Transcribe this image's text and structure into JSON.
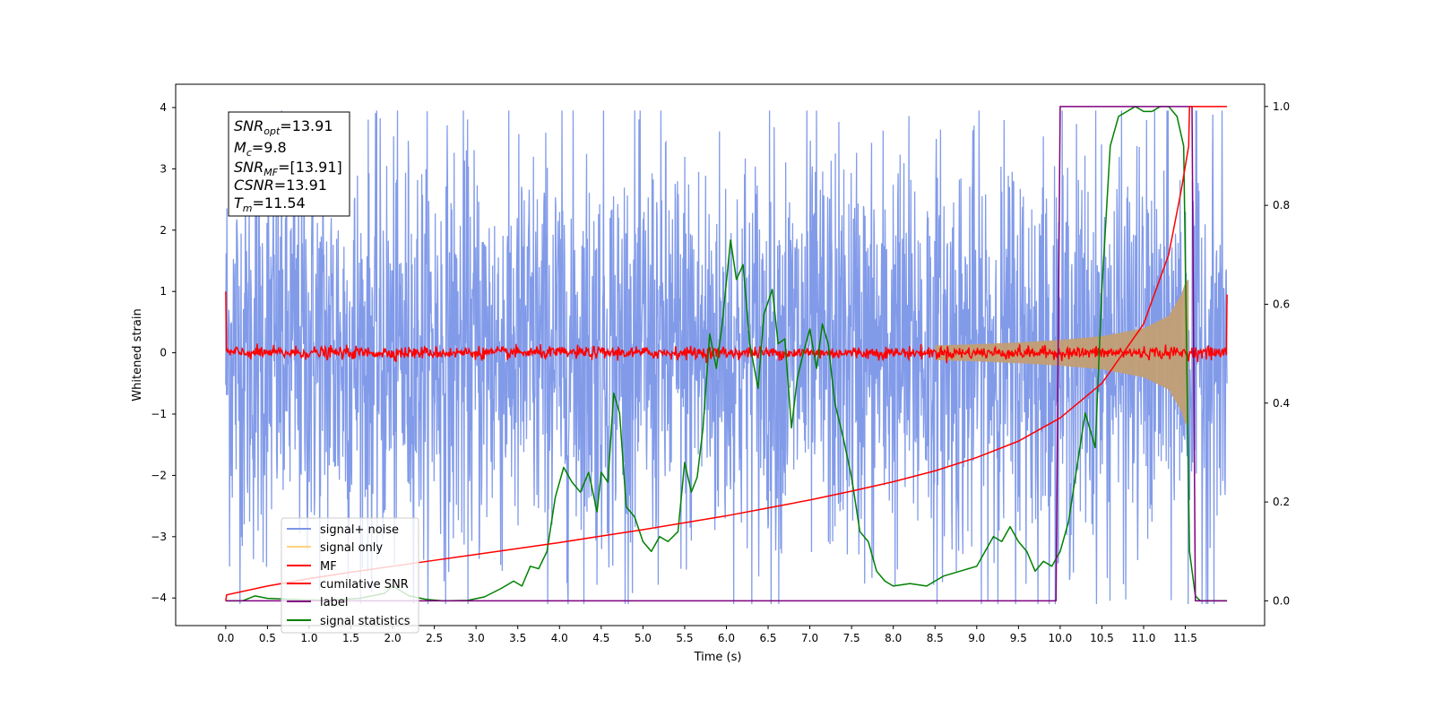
{
  "chart_data": {
    "type": "line",
    "xlabel": "Time (s)",
    "ylabel": "Whitened strain",
    "xlim": [
      -0.6,
      12.45
    ],
    "ylim_left": [
      -4.45,
      4.38
    ],
    "ylim_right": [
      -0.05,
      1.045
    ],
    "x_ticks": [
      "0.0",
      "0.5",
      "1.0",
      "1.5",
      "2.0",
      "2.5",
      "3.0",
      "3.5",
      "4.0",
      "4.5",
      "5.0",
      "5.5",
      "6.0",
      "6.5",
      "7.0",
      "7.5",
      "8.0",
      "8.5",
      "9.0",
      "9.5",
      "10.0",
      "10.5",
      "11.0",
      "11.5"
    ],
    "y_ticks_left": [
      "4",
      "3",
      "2",
      "1",
      "0",
      "−1",
      "−2",
      "−3",
      "−4"
    ],
    "y_ticks_right": [
      "1.0",
      "0.8",
      "0.6",
      "0.4",
      "0.2",
      "0.0"
    ],
    "legend": {
      "placement": "lower-left",
      "entries": [
        "signal+ noise",
        "signal only",
        "MF",
        "cumilative SNR",
        "label",
        "signal statistics"
      ]
    },
    "info_box": {
      "snr_opt": {
        "sym": "SNR",
        "sub": "opt",
        "val": "=13.91"
      },
      "mc": {
        "sym": "M",
        "sub": "c",
        "val": "=9.8"
      },
      "snr_mf": {
        "sym": "SNR",
        "sub": "MF",
        "val": "=[13.91]"
      },
      "csnr": {
        "sym": "CSNR",
        "sub": "",
        "val": "=13.91"
      },
      "tm": {
        "sym": "T",
        "sub": "m",
        "val": "=11.54"
      }
    },
    "colors": {
      "signal_noise": "#7b96e8",
      "signal_only": "#c29e74",
      "mf": "#ff0000",
      "cumulative_snr": "#ff0000",
      "label": "#800080",
      "signal_statistics": "#008000"
    },
    "series": [
      {
        "name": "signal+ noise",
        "axis": "left",
        "kind": "noise-band",
        "x_range": [
          0.0,
          12.0
        ],
        "typical_range": [
          -2.2,
          2.2
        ],
        "extreme_range": [
          -4.1,
          3.95
        ]
      },
      {
        "name": "signal only",
        "axis": "left",
        "kind": "chirp-envelope",
        "x": [
          8.5,
          9.0,
          9.5,
          10.0,
          10.5,
          11.0,
          11.3,
          11.45,
          11.5,
          11.54
        ],
        "amplitude": [
          0.12,
          0.14,
          0.17,
          0.21,
          0.27,
          0.4,
          0.6,
          0.95,
          1.15,
          1.2
        ]
      },
      {
        "name": "MF",
        "axis": "left",
        "kind": "noise-band",
        "x_range": [
          0.0,
          12.0
        ],
        "typical_range": [
          -0.12,
          0.12
        ],
        "start_value": 1.0,
        "end_value": 0.95
      },
      {
        "name": "cumilative SNR",
        "axis": "right",
        "x": [
          0.0,
          0.01,
          0.5,
          1.0,
          1.5,
          2.0,
          2.5,
          3.0,
          3.5,
          4.0,
          4.5,
          5.0,
          5.5,
          6.0,
          6.5,
          7.0,
          7.5,
          8.0,
          8.5,
          9.0,
          9.5,
          10.0,
          10.5,
          11.0,
          11.3,
          11.45,
          11.54,
          11.55,
          12.0
        ],
        "values": [
          0.0,
          0.012,
          0.03,
          0.045,
          0.058,
          0.07,
          0.082,
          0.094,
          0.106,
          0.118,
          0.131,
          0.144,
          0.158,
          0.172,
          0.188,
          0.204,
          0.222,
          0.241,
          0.263,
          0.29,
          0.323,
          0.37,
          0.44,
          0.56,
          0.7,
          0.83,
          0.92,
          1.0,
          1.0
        ]
      },
      {
        "name": "label",
        "axis": "right",
        "x": [
          0.0,
          9.95,
          10.0,
          11.58,
          11.62,
          12.0
        ],
        "values": [
          0.0,
          0.0,
          1.0,
          1.0,
          0.0,
          0.0
        ]
      },
      {
        "name": "signal statistics",
        "axis": "right",
        "x": [
          0.0,
          0.2,
          0.35,
          0.5,
          0.8,
          1.2,
          1.6,
          1.9,
          2.0,
          2.1,
          2.2,
          2.4,
          2.6,
          2.9,
          3.1,
          3.3,
          3.45,
          3.55,
          3.65,
          3.75,
          3.85,
          3.95,
          4.05,
          4.15,
          4.25,
          4.35,
          4.45,
          4.5,
          4.58,
          4.65,
          4.72,
          4.8,
          4.9,
          5.0,
          5.1,
          5.2,
          5.3,
          5.42,
          5.5,
          5.58,
          5.65,
          5.72,
          5.8,
          5.88,
          5.95,
          6.05,
          6.12,
          6.2,
          6.28,
          6.38,
          6.45,
          6.55,
          6.62,
          6.7,
          6.78,
          6.85,
          6.92,
          7.0,
          7.08,
          7.15,
          7.22,
          7.3,
          7.4,
          7.5,
          7.6,
          7.7,
          7.8,
          7.9,
          8.0,
          8.2,
          8.4,
          8.6,
          8.8,
          9.0,
          9.1,
          9.2,
          9.3,
          9.4,
          9.5,
          9.6,
          9.7,
          9.8,
          9.9,
          10.0,
          10.1,
          10.2,
          10.3,
          10.42,
          10.5,
          10.6,
          10.7,
          10.8,
          10.9,
          11.0,
          11.1,
          11.2,
          11.3,
          11.4,
          11.48,
          11.55,
          11.62,
          11.68,
          11.75,
          11.9,
          12.0
        ],
        "values": [
          0.0,
          0.0,
          0.01,
          0.005,
          0.003,
          0.001,
          0.005,
          0.015,
          0.03,
          0.02,
          0.01,
          0.003,
          0.0,
          0.001,
          0.008,
          0.025,
          0.04,
          0.03,
          0.07,
          0.065,
          0.1,
          0.21,
          0.27,
          0.24,
          0.22,
          0.26,
          0.18,
          0.26,
          0.24,
          0.42,
          0.38,
          0.19,
          0.17,
          0.12,
          0.1,
          0.13,
          0.12,
          0.14,
          0.28,
          0.22,
          0.25,
          0.35,
          0.54,
          0.47,
          0.56,
          0.73,
          0.65,
          0.68,
          0.52,
          0.43,
          0.58,
          0.63,
          0.52,
          0.53,
          0.35,
          0.45,
          0.5,
          0.55,
          0.47,
          0.56,
          0.52,
          0.4,
          0.33,
          0.25,
          0.14,
          0.12,
          0.06,
          0.04,
          0.03,
          0.035,
          0.03,
          0.05,
          0.06,
          0.07,
          0.1,
          0.13,
          0.12,
          0.15,
          0.12,
          0.1,
          0.06,
          0.08,
          0.07,
          0.1,
          0.16,
          0.27,
          0.38,
          0.31,
          0.63,
          0.92,
          0.98,
          0.99,
          1.0,
          0.99,
          0.99,
          1.0,
          1.0,
          0.98,
          0.92,
          0.1,
          0.01,
          0.0,
          0.0,
          0.0,
          0.0
        ]
      }
    ]
  }
}
